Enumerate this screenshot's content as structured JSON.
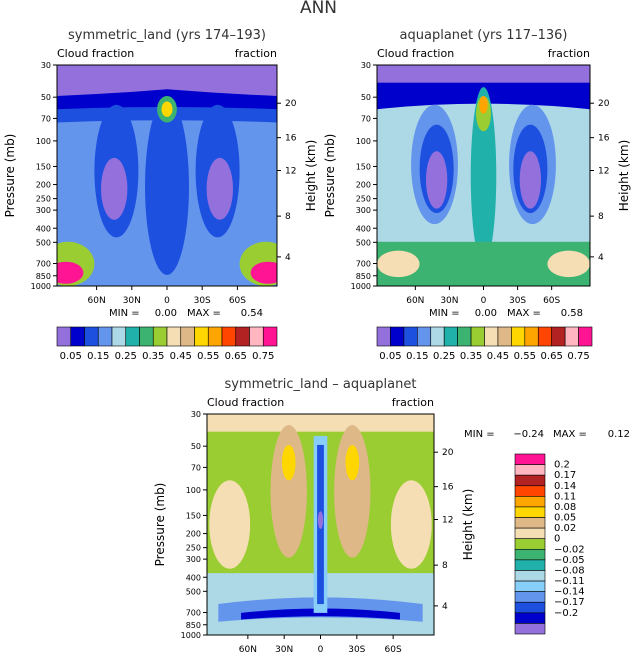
{
  "figure_title": "ANN",
  "colors": {
    "abs_scale": [
      "#9370db",
      "#0000cd",
      "#1e50e0",
      "#6495ed",
      "#add8e6",
      "#20b2aa",
      "#3cb371",
      "#9acd32",
      "#f5deb3",
      "#deb887",
      "#ffd700",
      "#ffa500",
      "#ff4500",
      "#b22222",
      "#ffb6c1",
      "#ff1493"
    ],
    "diff_scale": [
      "#9370db",
      "#0000cd",
      "#1e50e0",
      "#6495ed",
      "#87cefa",
      "#add8e6",
      "#20b2aa",
      "#3cb371",
      "#9acd32",
      "#f5deb3",
      "#deb887",
      "#ffd700",
      "#ffa500",
      "#ff4500",
      "#b22222",
      "#ffb6c1",
      "#ff1493"
    ]
  },
  "chart_data": [
    {
      "type": "contour",
      "title": "symmetric_land (yrs 174–193)",
      "subtitle_left": "Cloud fraction",
      "subtitle_right": "fraction",
      "ylabel": "Pressure (mb)",
      "y2label": "Height (km)",
      "y_ticks": [
        "30",
        "50",
        "70",
        "100",
        "150",
        "200",
        "250",
        "300",
        "400",
        "500",
        "700",
        "850",
        "1000"
      ],
      "y2_ticks": [
        "20",
        "16",
        "12",
        "8",
        "4"
      ],
      "x_ticks": [
        "60N",
        "30N",
        "0",
        "30S",
        "60S"
      ],
      "min_label": "MIN =",
      "min": "0.00",
      "max_label": "MAX =",
      "max": "0.54",
      "colorbar_labels": [
        "0.05",
        "0.15",
        "0.25",
        "0.35",
        "0.45",
        "0.55",
        "0.65",
        "0.75"
      ]
    },
    {
      "type": "contour",
      "title": "aquaplanet (yrs 117–136)",
      "subtitle_left": "Cloud fraction",
      "subtitle_right": "fraction",
      "ylabel": "Pressure (mb)",
      "y2label": "Height (km)",
      "y_ticks": [
        "30",
        "50",
        "70",
        "100",
        "150",
        "200",
        "250",
        "300",
        "400",
        "500",
        "700",
        "850",
        "1000"
      ],
      "y2_ticks": [
        "20",
        "16",
        "12",
        "8",
        "4"
      ],
      "x_ticks": [
        "60N",
        "30N",
        "0",
        "30S",
        "60S"
      ],
      "min_label": "MIN =",
      "min": "0.00",
      "max_label": "MAX =",
      "max": "0.58",
      "colorbar_labels": [
        "0.05",
        "0.15",
        "0.25",
        "0.35",
        "0.45",
        "0.55",
        "0.65",
        "0.75"
      ]
    },
    {
      "type": "contour",
      "title": "symmetric_land – aquaplanet",
      "subtitle_left": "Cloud fraction",
      "subtitle_right": "fraction",
      "ylabel": "Pressure (mb)",
      "y2label": "Height (km)",
      "y_ticks": [
        "30",
        "50",
        "70",
        "100",
        "150",
        "200",
        "250",
        "300",
        "400",
        "500",
        "700",
        "850",
        "1000"
      ],
      "y2_ticks": [
        "20",
        "16",
        "12",
        "8",
        "4"
      ],
      "x_ticks": [
        "60N",
        "30N",
        "0",
        "30S",
        "60S"
      ],
      "min_label": "MIN =",
      "min": "−0.24",
      "max_label": "MAX =",
      "max": "0.12",
      "colorbar_labels": [
        "0.2",
        "0.17",
        "0.14",
        "0.11",
        "0.08",
        "0.05",
        "0.02",
        "0",
        "−0.02",
        "−0.05",
        "−0.08",
        "−0.11",
        "−0.14",
        "−0.17",
        "−0.2"
      ]
    }
  ]
}
